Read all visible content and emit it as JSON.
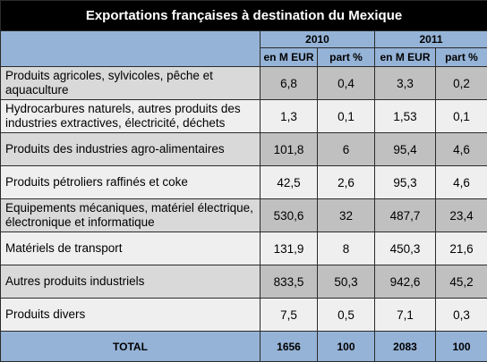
{
  "title": "Exportations françaises à destination du Mexique",
  "years": [
    "2010",
    "2011"
  ],
  "units": [
    "en M EUR",
    "part %",
    "en M EUR",
    "part %"
  ],
  "rows": [
    {
      "label": "Produits agricoles, sylvicoles, pêche et aquaculture",
      "v2010": "6,8",
      "p2010": "0,4",
      "v2011": "3,3",
      "p2011": "0,2"
    },
    {
      "label": "Hydrocarbures naturels, autres produits des industries extractives, électricité, déchets",
      "v2010": "1,3",
      "p2010": "0,1",
      "v2011": "1,53",
      "p2011": "0,1"
    },
    {
      "label": "Produits des industries agro-alimentaires",
      "v2010": "101,8",
      "p2010": "6",
      "v2011": "95,4",
      "p2011": "4,6"
    },
    {
      "label": "Produits pétroliers raffinés et coke",
      "v2010": "42,5",
      "p2010": "2,6",
      "v2011": "95,3",
      "p2011": "4,6"
    },
    {
      "label": "Equipements mécaniques, matériel électrique, électronique et informatique",
      "v2010": "530,6",
      "p2010": "32",
      "v2011": "487,7",
      "p2011": "23,4"
    },
    {
      "label": "Matériels de transport",
      "v2010": "131,9",
      "p2010": "8",
      "v2011": "450,3",
      "p2011": "21,6"
    },
    {
      "label": "Autres produits industriels",
      "v2010": "833,5",
      "p2010": "50,3",
      "v2011": "942,6",
      "p2011": "45,2"
    },
    {
      "label": "Produits divers",
      "v2010": "7,5",
      "p2010": "0,5",
      "v2011": "7,1",
      "p2011": "0,3"
    }
  ],
  "total": {
    "label": "TOTAL",
    "v2010": "1656",
    "p2010": "100",
    "v2011": "2083",
    "p2011": "100"
  },
  "colors": {
    "header_blue": "#95b3d7",
    "title_bg": "#000000",
    "row_dark": "#d9d9d9",
    "row_light": "#efefef"
  }
}
